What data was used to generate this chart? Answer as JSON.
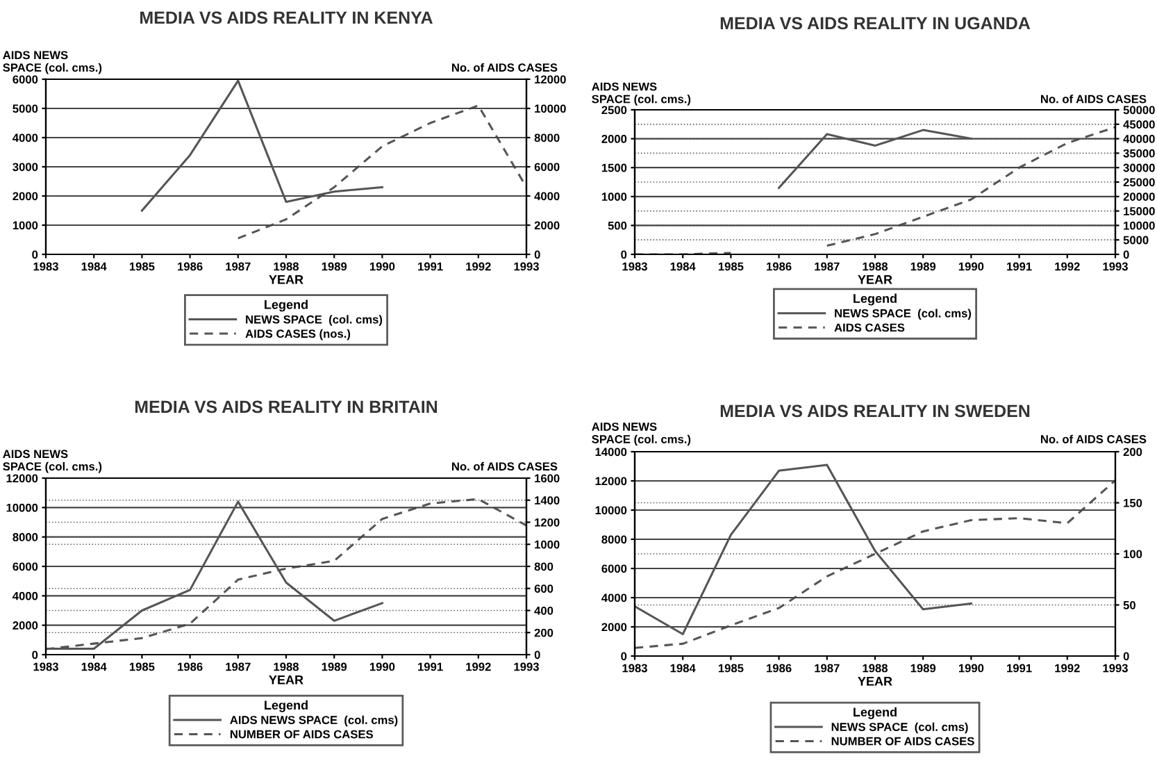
{
  "chart_data": [
    {
      "type": "line",
      "title": "MEDIA VS AIDS REALITY IN KENYA",
      "xlabel": "YEAR",
      "ylabel": "AIDS NEWS\nSPACE (col. cms.)",
      "y2label": "No. of AIDS CASES",
      "legend_title": "Legend",
      "legend": "bottom",
      "grid": "y",
      "xlim": [
        1983,
        1993
      ],
      "xticks": [
        1983,
        1984,
        1985,
        1986,
        1987,
        1988,
        1989,
        1990,
        1991,
        1992,
        1993
      ],
      "ylim": [
        0,
        6000
      ],
      "yticks": [
        0,
        1000,
        2000,
        3000,
        4000,
        5000,
        6000
      ],
      "y2lim": [
        0,
        12000
      ],
      "y2ticks": [
        0,
        2000,
        4000,
        6000,
        8000,
        10000,
        12000
      ],
      "x": [
        1985,
        1986,
        1987,
        1988,
        1989,
        1990,
        1991,
        1992,
        1993
      ],
      "series": [
        {
          "name": "NEWS SPACE  (col. cms)",
          "color": "#555555",
          "line_style": "solid",
          "values": [
            1500,
            3400,
            5950,
            1800,
            2150,
            2300,
            null,
            null,
            null
          ]
        },
        {
          "name": "AIDS CASES (nos.)",
          "color": "#555555",
          "line_style": "dashed",
          "axis": "y2",
          "values": [
            null,
            null,
            1100,
            2400,
            4600,
            7400,
            9000,
            10200,
            4600
          ]
        }
      ]
    },
    {
      "type": "line",
      "title": "MEDIA VS AIDS REALITY IN UGANDA",
      "xlabel": "YEAR",
      "ylabel": "AIDS NEWS\nSPACE (col. cms.)",
      "y2label": "No. of AIDS CASES",
      "legend_title": "Legend",
      "legend": "bottom",
      "grid": "y",
      "xlim": [
        1983,
        1993
      ],
      "xticks": [
        1983,
        1984,
        1985,
        1986,
        1987,
        1988,
        1989,
        1990,
        1991,
        1992,
        1993
      ],
      "ylim": [
        0,
        2500
      ],
      "yticks": [
        0,
        500,
        1000,
        1500,
        2000,
        2500
      ],
      "y2lim": [
        0,
        50000
      ],
      "y2ticks": [
        0,
        5000,
        10000,
        15000,
        20000,
        25000,
        30000,
        35000,
        40000,
        45000,
        50000
      ],
      "x": [
        1983,
        1984,
        1985,
        1986,
        1987,
        1988,
        1989,
        1990,
        1991,
        1992,
        1993
      ],
      "series": [
        {
          "name": "NEWS SPACE  (col. cms)",
          "color": "#555555",
          "line_style": "solid",
          "values": [
            null,
            null,
            null,
            1150,
            2080,
            1880,
            2150,
            2000,
            null,
            null,
            null
          ]
        },
        {
          "name": "AIDS CASES",
          "color": "#555555",
          "line_style": "dashed",
          "axis": "y2",
          "values": [
            0,
            0,
            500,
            null,
            3000,
            7000,
            13000,
            19000,
            30000,
            38500,
            44000
          ]
        }
      ]
    },
    {
      "type": "line",
      "title": "MEDIA VS AIDS REALITY IN BRITAIN",
      "xlabel": "YEAR",
      "ylabel": "AIDS NEWS\nSPACE (col. cms.)",
      "y2label": "No. of AIDS CASES",
      "legend_title": "Legend",
      "legend": "bottom",
      "grid": "y",
      "xlim": [
        1983,
        1993
      ],
      "xticks": [
        1983,
        1984,
        1985,
        1986,
        1987,
        1988,
        1989,
        1990,
        1991,
        1992,
        1993
      ],
      "ylim": [
        0,
        12000
      ],
      "yticks": [
        0,
        2000,
        4000,
        6000,
        8000,
        10000,
        12000
      ],
      "y2lim": [
        0,
        1600
      ],
      "y2ticks": [
        0,
        200,
        400,
        600,
        800,
        1000,
        1200,
        1400,
        1600
      ],
      "x": [
        1983,
        1984,
        1985,
        1986,
        1987,
        1988,
        1989,
        1990,
        1991,
        1992,
        1993
      ],
      "series": [
        {
          "name": "AIDS NEWS SPACE  (col. cms)",
          "color": "#555555",
          "line_style": "solid",
          "values": [
            400,
            400,
            3000,
            4400,
            10400,
            4900,
            2300,
            3500,
            null,
            null,
            null
          ]
        },
        {
          "name": "NUMBER OF AIDS CASES",
          "color": "#555555",
          "line_style": "dashed",
          "axis": "y2",
          "values": [
            50,
            100,
            150,
            280,
            680,
            780,
            850,
            1230,
            1370,
            1410,
            1170
          ]
        }
      ]
    },
    {
      "type": "line",
      "title": "MEDIA VS AIDS REALITY IN SWEDEN",
      "xlabel": "YEAR",
      "ylabel": "AIDS NEWS\nSPACE (col. cms.)",
      "y2label": "No. of AIDS CASES",
      "legend_title": "Legend",
      "legend": "bottom",
      "grid": "y",
      "xlim": [
        1983,
        1993
      ],
      "xticks": [
        1983,
        1984,
        1985,
        1986,
        1987,
        1988,
        1989,
        1990,
        1991,
        1992,
        1993
      ],
      "ylim": [
        0,
        14000
      ],
      "yticks": [
        0,
        2000,
        4000,
        6000,
        8000,
        10000,
        12000,
        14000
      ],
      "y2lim": [
        0,
        200
      ],
      "y2ticks": [
        0,
        50,
        100,
        150,
        200
      ],
      "x": [
        1983,
        1984,
        1985,
        1986,
        1987,
        1988,
        1989,
        1990,
        1991,
        1992,
        1993
      ],
      "series": [
        {
          "name": "NEWS SPACE  (col. cms)",
          "color": "#555555",
          "line_style": "solid",
          "values": [
            3400,
            1500,
            8300,
            12700,
            13100,
            7200,
            3200,
            3600,
            null,
            null,
            null
          ]
        },
        {
          "name": "NUMBER OF AIDS CASES",
          "color": "#555555",
          "line_style": "dashed",
          "axis": "y2",
          "values": [
            8,
            12,
            30,
            47,
            78,
            100,
            122,
            133,
            135,
            130,
            172
          ]
        }
      ]
    }
  ]
}
